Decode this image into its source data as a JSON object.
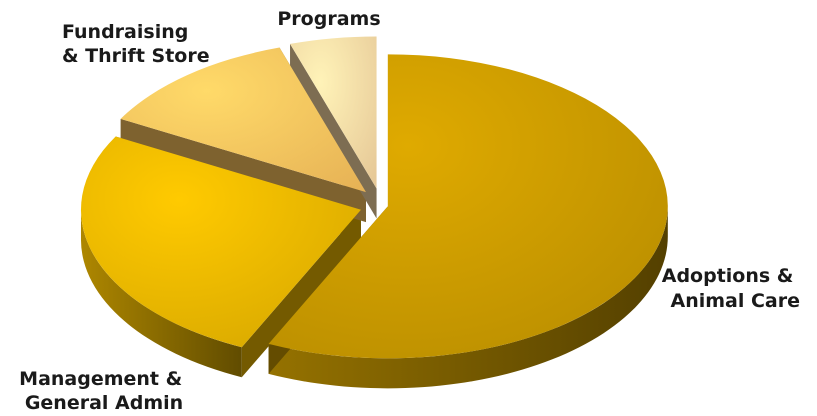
{
  "chart_data": {
    "type": "pie",
    "style": "3d-exploded",
    "title": "",
    "slices": [
      {
        "label": "Adoptions & Animal Care",
        "label_lines": [
          "Adoptions &",
          "Animal Care"
        ],
        "value": 57,
        "color": "#c79800"
      },
      {
        "label": "Management & General Admin",
        "label_lines": [
          "Management &",
          "General Admin"
        ],
        "value": 26,
        "color": "#e8b400"
      },
      {
        "label": "Fundraising & Thrift Store",
        "label_lines": [
          "Fundraising",
          "& Thrift Store"
        ],
        "value": 12,
        "color": "#fbc35e"
      },
      {
        "label": "Programs",
        "label_lines": [
          "Programs"
        ],
        "value": 5,
        "color": "#fad9a4"
      }
    ],
    "legend": "none",
    "value_unit": "percent (estimated, no data labels shown)"
  }
}
